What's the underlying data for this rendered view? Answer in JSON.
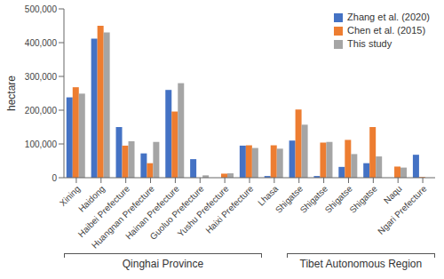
{
  "chart_data": {
    "type": "bar",
    "categories": [
      "Xining",
      "Haidong",
      "Haibei Prefecture",
      "Huangnan Prefecture",
      "Hainan Prefecture",
      "Guoluo Prefecture",
      "Yushu Prefecture",
      "Haixi Prefecture",
      "Lhasa",
      "Shigatse",
      "Shigatse",
      "Shigatse",
      "Shigatse",
      "Naqu",
      "Ngari Prefecture"
    ],
    "series": [
      {
        "name": "Zhang et al. (2020)",
        "color": "#4472C4",
        "values": [
          238000,
          412000,
          150000,
          72000,
          260000,
          55000,
          0,
          95000,
          5000,
          110000,
          5000,
          32000,
          43000,
          0,
          68000
        ]
      },
      {
        "name": "Chen et al. (2015)",
        "color": "#ED7D31",
        "values": [
          268000,
          450000,
          95000,
          43000,
          196000,
          0,
          12000,
          96000,
          96000,
          202000,
          104000,
          112000,
          150000,
          33000,
          2000
        ]
      },
      {
        "name": "This study",
        "color": "#A5A5A5",
        "values": [
          249000,
          430000,
          108000,
          106000,
          280000,
          7000,
          13000,
          88000,
          86000,
          157000,
          106000,
          70000,
          63000,
          30000,
          0
        ]
      }
    ],
    "ylabel": "hectare",
    "ylim": [
      0,
      500000
    ],
    "yticks": [
      0,
      {
        "value": 100000,
        "label": "100,000"
      },
      {
        "value": 200000,
        "label": "200,000"
      },
      {
        "value": 300000,
        "label": "300,000"
      },
      {
        "value": 400000,
        "label": "400,000"
      },
      {
        "value": 500000,
        "label": "500,000"
      }
    ],
    "legend": "upper right",
    "grid": false,
    "annotations": [
      "Qinghai Province",
      "Tibet Autonomous Region"
    ]
  }
}
